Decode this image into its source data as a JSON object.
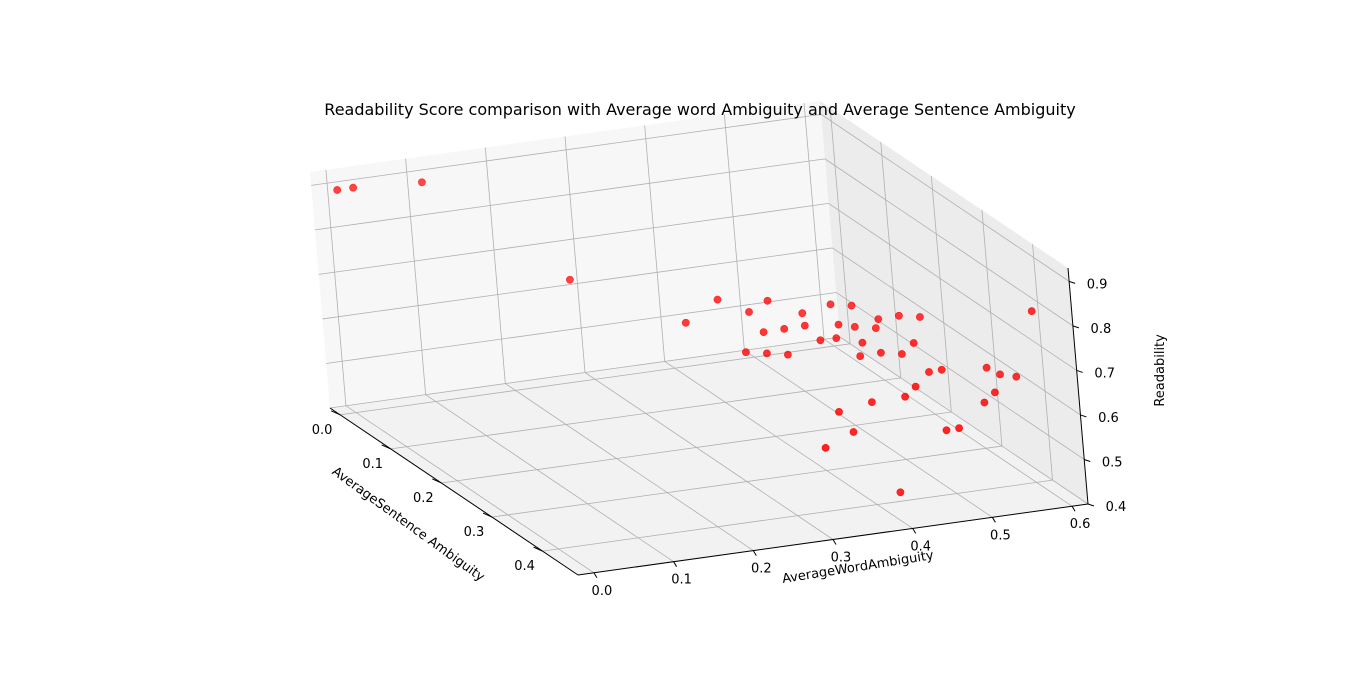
{
  "chart_data": {
    "type": "scatter",
    "projection": "3d",
    "title": "Readability Score comparison with Average word Ambiguity and Average Sentence Ambiguity",
    "xlabel": "AverageWordAmbiguity",
    "ylabel": "AverageSentence Ambiguity",
    "zlabel": "Readability",
    "xlim": [
      -0.02,
      0.62
    ],
    "ylim": [
      -0.02,
      0.47
    ],
    "zlim": [
      0.4,
      0.93
    ],
    "xticks": [
      "0.0",
      "0.1",
      "0.2",
      "0.3",
      "0.4",
      "0.5",
      "0.6"
    ],
    "yticks": [
      "0.0",
      "0.1",
      "0.2",
      "0.3",
      "0.4"
    ],
    "zticks": [
      "0.4",
      "0.5",
      "0.6",
      "0.7",
      "0.8",
      "0.9"
    ],
    "grid": true,
    "marker_color": "#ff0000",
    "pane_colors": {
      "floor": "#f2f2f2",
      "back": "#f7f7f7",
      "side": "#ececec"
    },
    "grid_color": "#b0b0b0",
    "series": [
      {
        "x": [
          0.0,
          0.02,
          0.1,
          0.22,
          0.3,
          0.33,
          0.35,
          0.38,
          0.41,
          0.44,
          0.46,
          0.48,
          0.5,
          0.52,
          0.47,
          0.45,
          0.4,
          0.38,
          0.36,
          0.42,
          0.43,
          0.44,
          0.47,
          0.48,
          0.45,
          0.43,
          0.4,
          0.37,
          0.35,
          0.33,
          0.49,
          0.5,
          0.46,
          0.44,
          0.41,
          0.38,
          0.33,
          0.55,
          0.56,
          0.58,
          0.6,
          0.54,
          0.52,
          0.48,
          0.47,
          0.43,
          0.39
        ],
        "y": [
          0.0,
          0.0,
          0.01,
          0.1,
          0.2,
          0.22,
          0.25,
          0.24,
          0.26,
          0.27,
          0.28,
          0.3,
          0.31,
          0.32,
          0.31,
          0.3,
          0.28,
          0.27,
          0.26,
          0.31,
          0.3,
          0.33,
          0.36,
          0.37,
          0.35,
          0.34,
          0.31,
          0.29,
          0.28,
          0.27,
          0.38,
          0.39,
          0.4,
          0.41,
          0.39,
          0.37,
          0.42,
          0.4,
          0.41,
          0.41,
          0.42,
          0.43,
          0.44,
          0.45,
          0.44,
          0.4,
          0.38
        ],
        "z": [
          0.9,
          0.9,
          0.9,
          0.72,
          0.68,
          0.74,
          0.73,
          0.74,
          0.72,
          0.74,
          0.74,
          0.72,
          0.73,
          0.73,
          0.71,
          0.71,
          0.71,
          0.7,
          0.69,
          0.7,
          0.72,
          0.7,
          0.69,
          0.72,
          0.69,
          0.68,
          0.7,
          0.66,
          0.66,
          0.66,
          0.66,
          0.67,
          0.65,
          0.64,
          0.62,
          0.59,
          0.56,
          0.67,
          0.66,
          0.65,
          0.8,
          0.64,
          0.63,
          0.59,
          0.58,
          0.42,
          0.55
        ]
      }
    ]
  }
}
